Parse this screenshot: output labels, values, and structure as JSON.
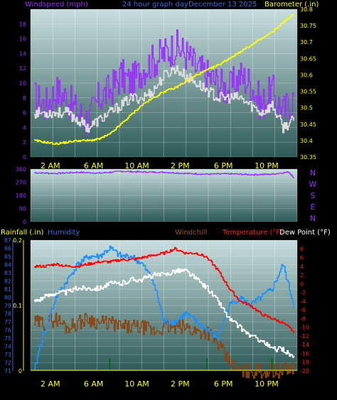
{
  "header": {
    "windspeed_label": "Windspeed (mph)",
    "title": "24 hour graph day",
    "date": "December 13 2025",
    "barometer_label": "Barometer (.in)"
  },
  "colors": {
    "background": "#000000",
    "plot_top": "#c8dede",
    "plot_bottom": "#2e5a57",
    "axis_text": "#ffff00",
    "wind_speed": "#8a2be2",
    "wind_gust": "#9b30ff",
    "wind_avg": "#dcdcdc",
    "barometer": "#ffff00",
    "direction": "#9b30ff",
    "humidity": "#1e90ff",
    "windchill": "#ffffff",
    "temperature": "#ff0000",
    "dew_point": "#8b4513",
    "rainfall": "#006400",
    "rain_label": "#ffff00",
    "humidity_label": "#4169e1",
    "windchill_label": "#a0522d",
    "temperature_label": "#ff2020",
    "dewpoint_label": "#ffffff"
  },
  "chart_data": [
    {
      "type": "line",
      "title": "24 hour graph day",
      "x_ticks": [
        "2 AM",
        "6 AM",
        "10 AM",
        "2 PM",
        "6 PM",
        "10 PM"
      ],
      "x_range_hours": [
        0,
        24
      ],
      "y_left_label": "Windspeed (mph)",
      "y_left_range": [
        0,
        20
      ],
      "y_left_ticks": [
        0,
        2,
        4,
        6,
        8,
        10,
        12,
        14,
        16,
        18
      ],
      "y_right_label": "Barometer (.in)",
      "y_right_range": [
        30.35,
        30.8
      ],
      "y_right_ticks": [
        "30.35",
        "30.4",
        "30.45",
        "30.5",
        "30.55",
        "30.6",
        "30.65",
        "30.7",
        "30.75",
        "30.8"
      ],
      "series": [
        {
          "name": "Windspeed (mph)",
          "axis": "left",
          "x": [
            0,
            1,
            2,
            3,
            4,
            5,
            6,
            7,
            8,
            9,
            10,
            11,
            12,
            13,
            14,
            15,
            16,
            17,
            18,
            19,
            20,
            21,
            22,
            23,
            24
          ],
          "values": [
            8,
            7,
            9,
            8,
            6,
            5,
            8,
            9,
            11,
            10,
            12,
            13,
            14,
            15,
            14,
            12,
            11,
            10,
            9,
            11,
            10,
            7,
            9,
            6,
            8
          ]
        },
        {
          "name": "Wind average",
          "axis": "left",
          "x": [
            0,
            1,
            2,
            3,
            4,
            5,
            6,
            7,
            8,
            9,
            10,
            11,
            12,
            13,
            14,
            15,
            16,
            17,
            18,
            19,
            20,
            21,
            22,
            23,
            24
          ],
          "values": [
            6,
            6,
            6,
            6,
            5,
            4,
            5,
            6,
            7,
            8,
            8,
            9,
            11,
            12,
            11,
            10,
            9,
            8,
            8,
            8,
            7,
            6,
            7,
            4,
            5
          ]
        },
        {
          "name": "Barometer (.in)",
          "axis": "right",
          "x": [
            0,
            1,
            2,
            3,
            4,
            5,
            6,
            7,
            8,
            9,
            10,
            11,
            12,
            13,
            14,
            15,
            16,
            17,
            18,
            19,
            20,
            21,
            22,
            23,
            24
          ],
          "values": [
            30.4,
            30.395,
            30.39,
            30.395,
            30.4,
            30.4,
            30.405,
            30.42,
            30.45,
            30.48,
            30.51,
            30.53,
            30.55,
            30.56,
            30.58,
            30.6,
            30.615,
            30.63,
            30.65,
            30.67,
            30.69,
            30.71,
            30.73,
            30.76,
            30.785
          ]
        }
      ]
    },
    {
      "type": "line",
      "y_left_range": [
        0,
        360
      ],
      "y_left_ticks": [
        0,
        90,
        180,
        270,
        360
      ],
      "y_right_ticks": [
        "N",
        "W",
        "S",
        "E",
        "N"
      ],
      "series": [
        {
          "name": "Wind direction",
          "axis": "left",
          "x": [
            0,
            2,
            4,
            6,
            8,
            10,
            12,
            14,
            16,
            18,
            20,
            22,
            23.5,
            24
          ],
          "values": [
            335,
            330,
            338,
            332,
            345,
            340,
            338,
            330,
            325,
            328,
            322,
            325,
            340,
            300
          ]
        }
      ]
    },
    {
      "type": "line",
      "legend": [
        "Rainfall (.in)",
        "Humidity",
        "Windchill",
        "Temperature (°F)",
        "Dew Point (°F)"
      ],
      "x_ticks": [
        "2 AM",
        "6 AM",
        "10 AM",
        "2 PM",
        "6 PM",
        "10 PM"
      ],
      "y_rain_range": [
        0,
        0.2
      ],
      "y_rain_ticks": [
        "0",
        "0.1",
        "0.2"
      ],
      "y_humidity_range": [
        71,
        87
      ],
      "y_humidity_ticks": [
        71,
        72,
        73,
        74,
        75,
        76,
        77,
        78,
        79,
        80,
        81,
        82,
        83,
        84,
        85,
        86,
        87
      ],
      "y_temp_range": [
        -20,
        10
      ],
      "y_temp_ticks": [
        -20,
        -18,
        -16,
        -14,
        -12,
        -10,
        -8,
        -6,
        -4,
        -2,
        0,
        2,
        4,
        6,
        8
      ],
      "series": [
        {
          "name": "Humidity",
          "axis": "humidity",
          "x": [
            0,
            0.5,
            1,
            2,
            3,
            4,
            5,
            6,
            7,
            8,
            9,
            10,
            11,
            12,
            13,
            14,
            15,
            16,
            17,
            18,
            19,
            20,
            21,
            22,
            23,
            24
          ],
          "values": [
            71,
            74,
            76,
            80,
            82,
            84,
            85,
            85,
            86,
            85,
            85,
            84,
            82,
            77,
            77,
            78,
            77,
            76,
            75,
            79,
            80,
            79,
            80,
            81,
            84,
            79
          ]
        },
        {
          "name": "Windchill",
          "axis": "temp",
          "x": [
            0,
            1,
            2,
            3,
            4,
            5,
            6,
            7,
            8,
            9,
            10,
            11,
            12,
            13,
            14,
            15,
            16,
            17,
            18,
            19,
            20,
            21,
            22,
            23,
            24
          ],
          "values": [
            -4,
            -3,
            -2,
            -2,
            -1,
            -1,
            -1,
            0,
            0,
            1,
            1,
            2,
            2,
            3,
            3,
            1,
            -1,
            -4,
            -8,
            -10,
            -12,
            -13,
            -15,
            -15,
            -17
          ]
        },
        {
          "name": "Temperature (°F)",
          "axis": "temp",
          "x": [
            0,
            1,
            2,
            3,
            4,
            5,
            6,
            7,
            8,
            9,
            10,
            11,
            12,
            13,
            14,
            15,
            16,
            17,
            18,
            19,
            20,
            21,
            22,
            23,
            24
          ],
          "values": [
            4,
            4,
            4.5,
            4,
            4,
            4.5,
            5,
            5,
            5.5,
            5.5,
            6,
            6.5,
            7,
            8,
            7,
            7,
            6,
            3,
            -1,
            -4,
            -5,
            -7,
            -8,
            -9,
            -11
          ]
        },
        {
          "name": "Dew Point (°F)",
          "axis": "temp",
          "x": [
            0,
            1,
            2,
            3,
            4,
            5,
            6,
            7,
            8,
            9,
            10,
            11,
            12,
            13,
            14,
            15,
            16,
            17,
            18,
            19,
            20,
            21,
            22,
            23,
            24
          ],
          "values": [
            -9,
            -9,
            -8,
            -10,
            -9,
            -8,
            -9,
            -9,
            -10,
            -10,
            -10,
            -11,
            -10,
            -10,
            -10,
            -11,
            -11,
            -14,
            -18,
            -20,
            -20,
            -20,
            -20,
            -20,
            -19
          ]
        },
        {
          "name": "Rainfall (.in)",
          "axis": "rain",
          "x": [
            7,
            16,
            22
          ],
          "values": [
            0.01,
            0.01,
            0.01
          ]
        }
      ]
    }
  ],
  "bottom_labels": {
    "rainfall": "Rainfall (.in)",
    "humidity": "Humidity",
    "windchill": "Windchill",
    "temperature": "Temperature (°F)",
    "dew_point": "Dew Point (°F)"
  }
}
